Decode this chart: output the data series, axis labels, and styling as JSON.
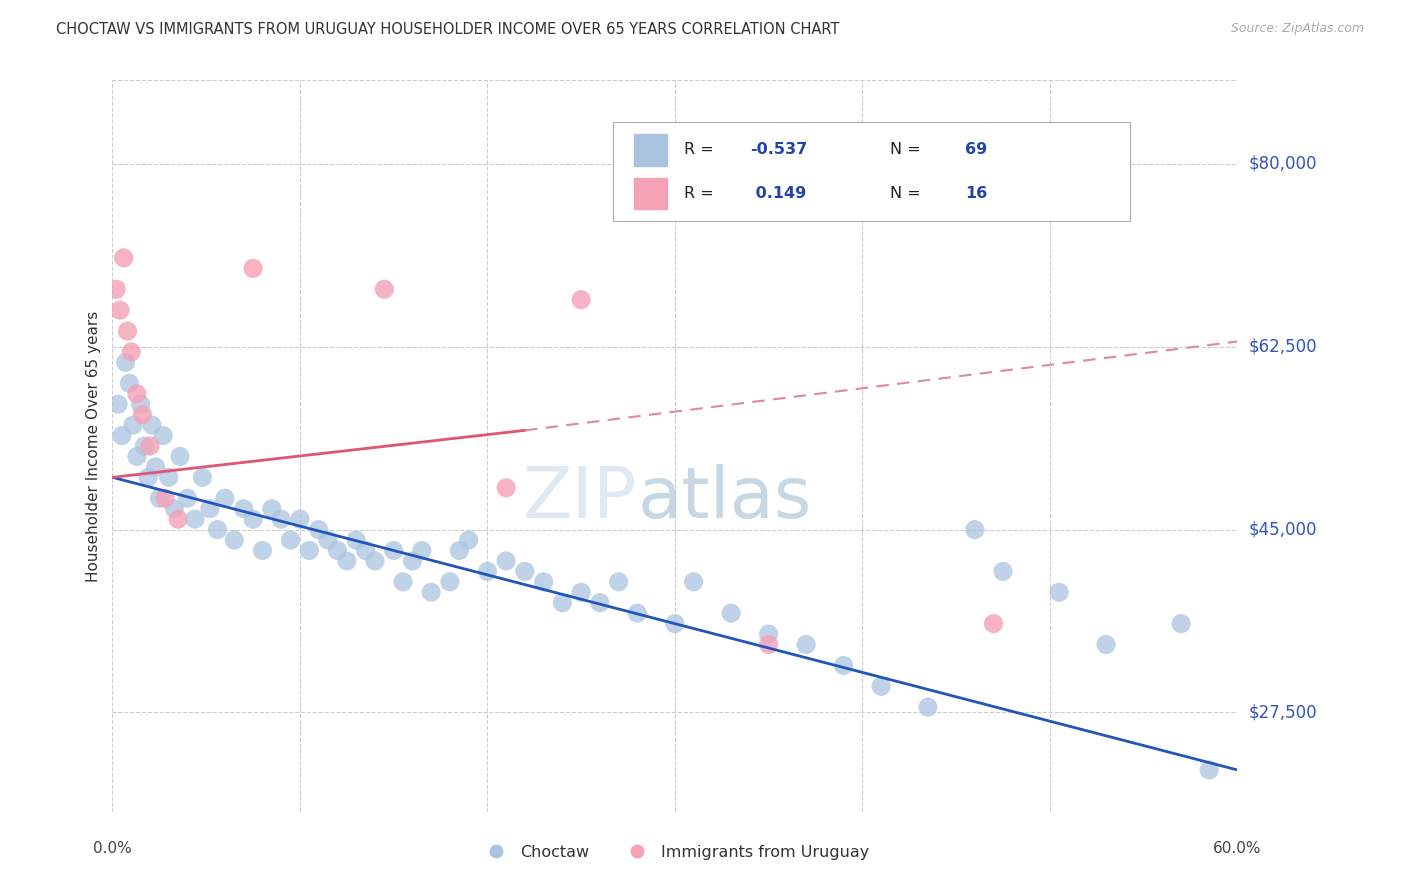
{
  "title": "CHOCTAW VS IMMIGRANTS FROM URUGUAY HOUSEHOLDER INCOME OVER 65 YEARS CORRELATION CHART",
  "source": "Source: ZipAtlas.com",
  "ylabel": "Householder Income Over 65 years",
  "xlim": [
    0.0,
    60.0
  ],
  "ylim": [
    18000,
    88000
  ],
  "yticks": [
    27500,
    45000,
    62500,
    80000
  ],
  "ytick_labels": [
    "$27,500",
    "$45,000",
    "$62,500",
    "$80,000"
  ],
  "choctaw_color": "#aac4e0",
  "uruguay_color": "#f4a0b5",
  "blue_line_color": "#2255bb",
  "pink_line_color": "#e05575",
  "pink_dashed_color": "#e08898",
  "grid_color": "#cccccc",
  "background_color": "#ffffff",
  "choctaw_x": [
    0.3,
    0.5,
    0.7,
    0.9,
    1.1,
    1.3,
    1.5,
    1.7,
    1.9,
    2.1,
    2.3,
    2.5,
    2.7,
    3.0,
    3.3,
    3.6,
    4.0,
    4.4,
    4.8,
    5.2,
    5.6,
    6.0,
    6.5,
    7.0,
    7.5,
    8.0,
    8.5,
    9.0,
    9.5,
    10.0,
    10.5,
    11.0,
    11.5,
    12.0,
    12.5,
    13.0,
    13.5,
    14.0,
    15.0,
    15.5,
    16.0,
    16.5,
    17.0,
    18.0,
    18.5,
    19.0,
    20.0,
    21.0,
    22.0,
    23.0,
    24.0,
    25.0,
    26.0,
    27.0,
    28.0,
    30.0,
    31.0,
    33.0,
    35.0,
    37.0,
    39.0,
    41.0,
    43.5,
    46.0,
    47.5,
    50.5,
    53.0,
    57.0,
    58.5
  ],
  "choctaw_y": [
    57000,
    54000,
    61000,
    59000,
    55000,
    52000,
    57000,
    53000,
    50000,
    55000,
    51000,
    48000,
    54000,
    50000,
    47000,
    52000,
    48000,
    46000,
    50000,
    47000,
    45000,
    48000,
    44000,
    47000,
    46000,
    43000,
    47000,
    46000,
    44000,
    46000,
    43000,
    45000,
    44000,
    43000,
    42000,
    44000,
    43000,
    42000,
    43000,
    40000,
    42000,
    43000,
    39000,
    40000,
    43000,
    44000,
    41000,
    42000,
    41000,
    40000,
    38000,
    39000,
    38000,
    40000,
    37000,
    36000,
    40000,
    37000,
    35000,
    34000,
    32000,
    30000,
    28000,
    45000,
    41000,
    39000,
    34000,
    36000,
    22000
  ],
  "uruguay_x": [
    0.2,
    0.4,
    0.6,
    0.8,
    1.0,
    1.3,
    1.6,
    2.0,
    2.8,
    3.5,
    7.5,
    14.5,
    21.0,
    25.0,
    35.0,
    47.0
  ],
  "uruguay_y": [
    68000,
    66000,
    71000,
    64000,
    62000,
    58000,
    56000,
    53000,
    48000,
    46000,
    70000,
    68000,
    49000,
    67000,
    34000,
    36000
  ],
  "blue_x0": 0,
  "blue_y0": 50000,
  "blue_x1": 60,
  "blue_y1": 22000,
  "pink_solid_x0": 0,
  "pink_solid_y0": 50000,
  "pink_solid_x1": 22,
  "pink_solid_y1": 54500,
  "pink_dash_x0": 22,
  "pink_dash_y0": 54500,
  "pink_dash_x1": 60,
  "pink_dash_y1": 63000,
  "legend_r1_text": "R = -0.537",
  "legend_n1_text": "N = 69",
  "legend_r2_text": "R =  0.149",
  "legend_n2_text": "N = 16",
  "watermark_zip": "ZIP",
  "watermark_atlas": "atlas"
}
